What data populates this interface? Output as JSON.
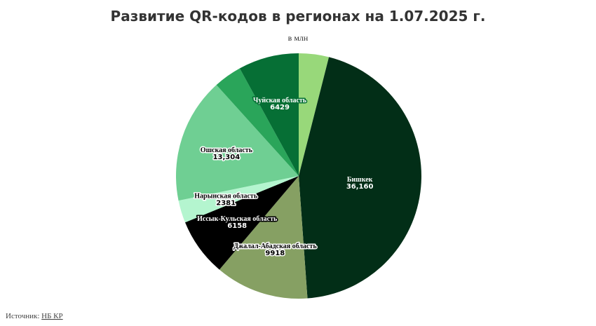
{
  "chart_data": {
    "type": "pie",
    "title": "Развитие QR-кодов в регионах на 1.07.2025 г.",
    "subtitle": "в млн",
    "categories": [
      null,
      "Бишкек",
      "Джалал-Абадская область",
      "Иссык-Кульская область",
      "Нарынская область",
      "Ошская область",
      null,
      "Чуйская область"
    ],
    "values": [
      3190,
      36160,
      9918,
      6158,
      2381,
      13304,
      2990,
      6429
    ],
    "value_labels": [
      null,
      "36,160",
      "9918",
      "6158",
      "2381",
      "13,304",
      null,
      "6429"
    ],
    "colors": [
      "#98d87a",
      "#022e17",
      "#86a063",
      "#000000",
      "#b4f5cf",
      "#6fcf93",
      "#2aa55a",
      "#066f35"
    ]
  },
  "source": {
    "label": "Источник:",
    "link": "НБ КР"
  }
}
